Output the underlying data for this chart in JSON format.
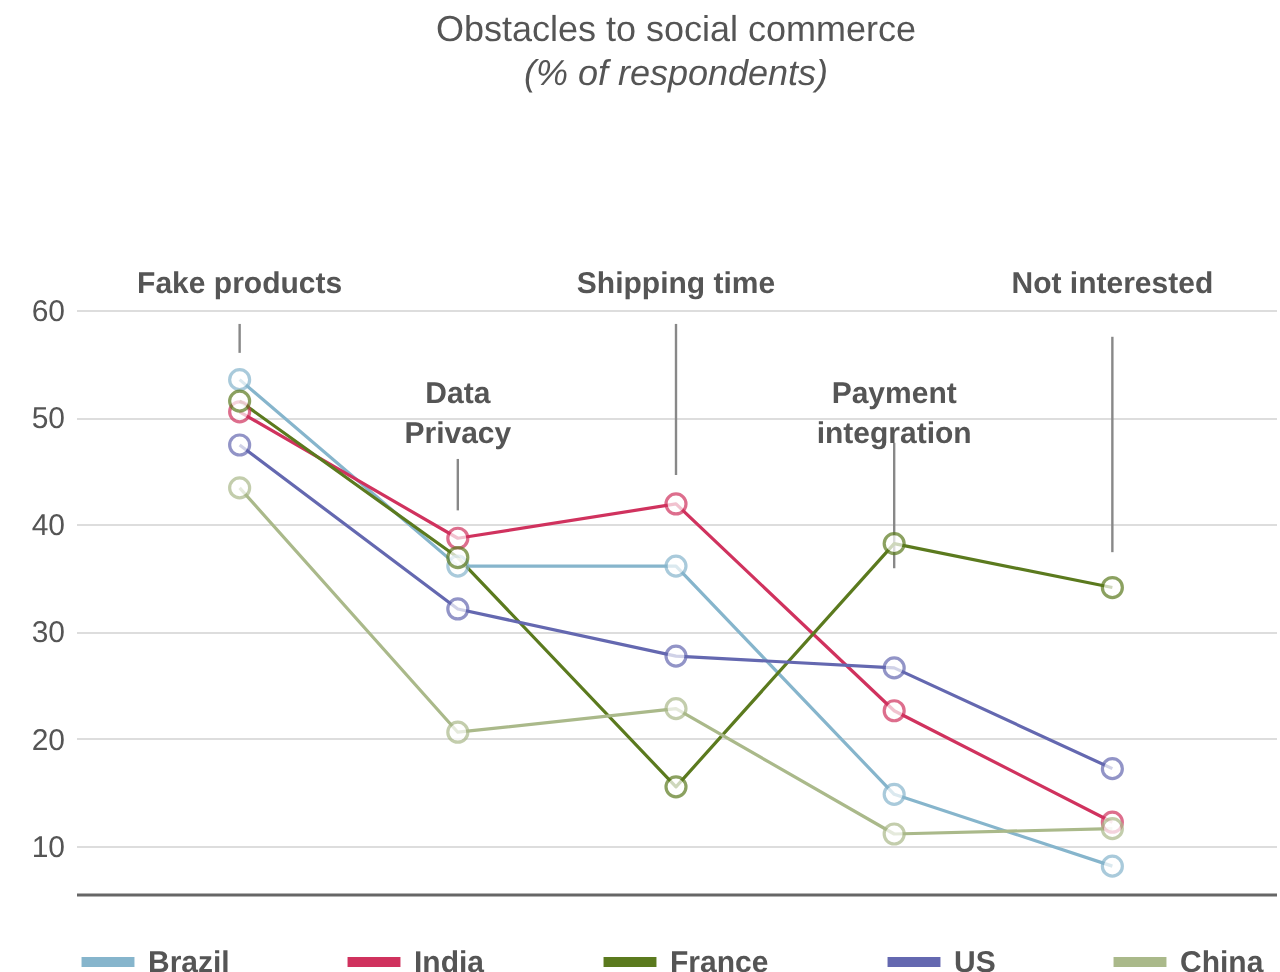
{
  "chart_data": {
    "type": "line",
    "title": "Obstacles to social commerce",
    "subtitle": "(% of respondents)",
    "categories": [
      "Fake products",
      "Data Privacy",
      "Shipping time",
      "Payment integration",
      "Not interested"
    ],
    "series": [
      {
        "name": "Brazil",
        "color": "#86b5cc",
        "values": [
          53.5,
          36.1,
          36.1,
          14.8,
          8.1
        ]
      },
      {
        "name": "India",
        "color": "#d0325e",
        "values": [
          50.5,
          38.7,
          41.9,
          22.6,
          12.2
        ]
      },
      {
        "name": "France",
        "color": "#5b7a1e",
        "values": [
          51.5,
          36.9,
          15.5,
          38.2,
          34.1
        ]
      },
      {
        "name": "US",
        "color": "#6468b0",
        "values": [
          47.4,
          32.1,
          27.7,
          26.6,
          17.2
        ]
      },
      {
        "name": "China",
        "color": "#aab98a",
        "values": [
          43.4,
          20.6,
          22.8,
          11.1,
          11.6
        ]
      }
    ],
    "ylim": [
      5.5,
      60
    ],
    "yticks": [
      10,
      20,
      30,
      40,
      50,
      60
    ],
    "grid": "y",
    "legend": "bottom",
    "marker": "circle",
    "line_style": "solid"
  }
}
